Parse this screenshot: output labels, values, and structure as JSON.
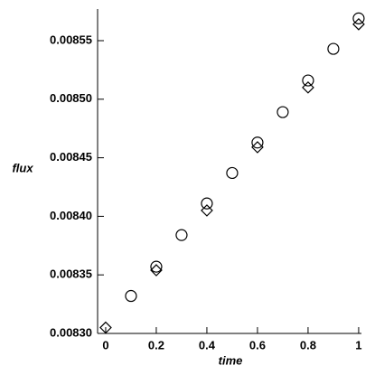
{
  "chart_data": {
    "type": "scatter",
    "x_label": "time",
    "y_label": "flux",
    "xlim": [
      -0.032,
      1.011
    ],
    "ylim": [
      0.0083,
      0.008577
    ],
    "xticks": [
      0,
      0.2,
      0.4,
      0.6,
      0.8,
      1
    ],
    "yticks": [
      {
        "value": 0.0083,
        "label": "0.00830"
      },
      {
        "value": 0.00835,
        "label": "0.00835"
      },
      {
        "value": 0.0084,
        "label": "0.00840"
      },
      {
        "value": 0.00845,
        "label": "0.00845"
      },
      {
        "value": 0.0085,
        "label": "0.00850"
      },
      {
        "value": 0.00855,
        "label": "0.00855"
      }
    ],
    "series": [
      {
        "marker": "circle",
        "color": "#000000",
        "x": [
          0.1,
          0.2,
          0.3,
          0.4,
          0.5,
          0.6,
          0.7,
          0.8,
          0.9,
          1.0
        ],
        "values": [
          0.008332,
          0.008357,
          0.008384,
          0.008411,
          0.008437,
          0.008463,
          0.008489,
          0.008516,
          0.008543,
          0.008569
        ]
      },
      {
        "marker": "diamond",
        "color": "#000000",
        "x": [
          0,
          0.2,
          0.4,
          0.6,
          0.8,
          1.0
        ],
        "values": [
          0.008305,
          0.008354,
          0.008405,
          0.008459,
          0.00851,
          0.008564
        ]
      }
    ]
  }
}
